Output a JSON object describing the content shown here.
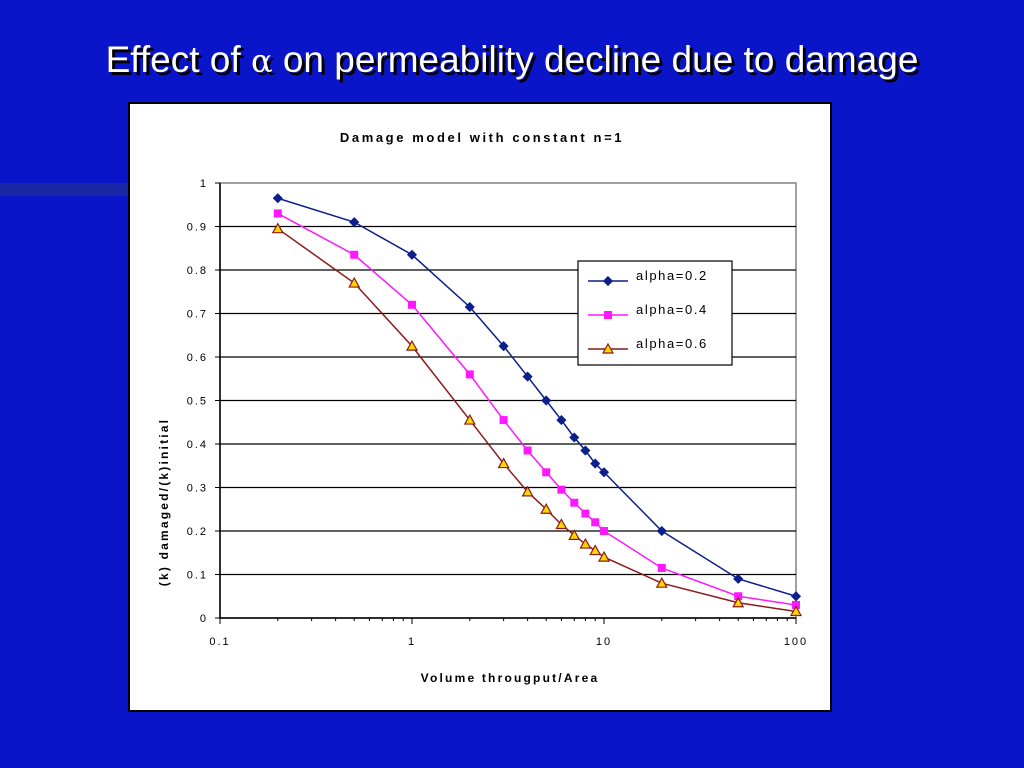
{
  "slide": {
    "title_before": "Effect of ",
    "title_symbol": "α",
    "title_after": " on permeability decline due to damage"
  },
  "colors": {
    "background": "#0a14c8",
    "series": [
      "#0d1f8a",
      "#ff18ff",
      "#8b1a1a"
    ],
    "triangle_fill": "#ffd700"
  },
  "chart_data": {
    "type": "scatter",
    "title": "Damage model with constant n=1",
    "xlabel": "Volume througput/Area",
    "ylabel": "(k) damaged/(k)initial",
    "x_scale": "log",
    "xlim": [
      0.1,
      100
    ],
    "ylim": [
      0,
      1
    ],
    "x_ticks": [
      0.1,
      1,
      10,
      100
    ],
    "x_tick_labels": [
      "0.1",
      "1",
      "10",
      "100"
    ],
    "y_ticks": [
      0,
      0.1,
      0.2,
      0.3,
      0.4,
      0.5,
      0.6,
      0.7,
      0.8,
      0.9,
      1
    ],
    "y_tick_labels": [
      "0",
      "0.1",
      "0.2",
      "0.3",
      "0.4",
      "0.5",
      "0.6",
      "0.7",
      "0.8",
      "0.9",
      "1"
    ],
    "grid": "horizontal",
    "legend_position": "right",
    "x": [
      0.2,
      0.5,
      1,
      2,
      3,
      4,
      5,
      6,
      7,
      8,
      9,
      10,
      20,
      50,
      100
    ],
    "series": [
      {
        "name": "alpha=0.2",
        "marker": "diamond",
        "values": [
          0.965,
          0.91,
          0.835,
          0.715,
          0.625,
          0.555,
          0.5,
          0.455,
          0.415,
          0.385,
          0.355,
          0.335,
          0.2,
          0.09,
          0.05
        ]
      },
      {
        "name": "alpha=0.4",
        "marker": "square",
        "values": [
          0.93,
          0.835,
          0.72,
          0.56,
          0.455,
          0.385,
          0.335,
          0.295,
          0.265,
          0.24,
          0.22,
          0.2,
          0.115,
          0.05,
          0.03
        ]
      },
      {
        "name": "alpha=0.6",
        "marker": "triangle",
        "values": [
          0.895,
          0.77,
          0.625,
          0.455,
          0.355,
          0.29,
          0.25,
          0.215,
          0.19,
          0.17,
          0.155,
          0.14,
          0.08,
          0.035,
          0.015
        ]
      }
    ]
  }
}
